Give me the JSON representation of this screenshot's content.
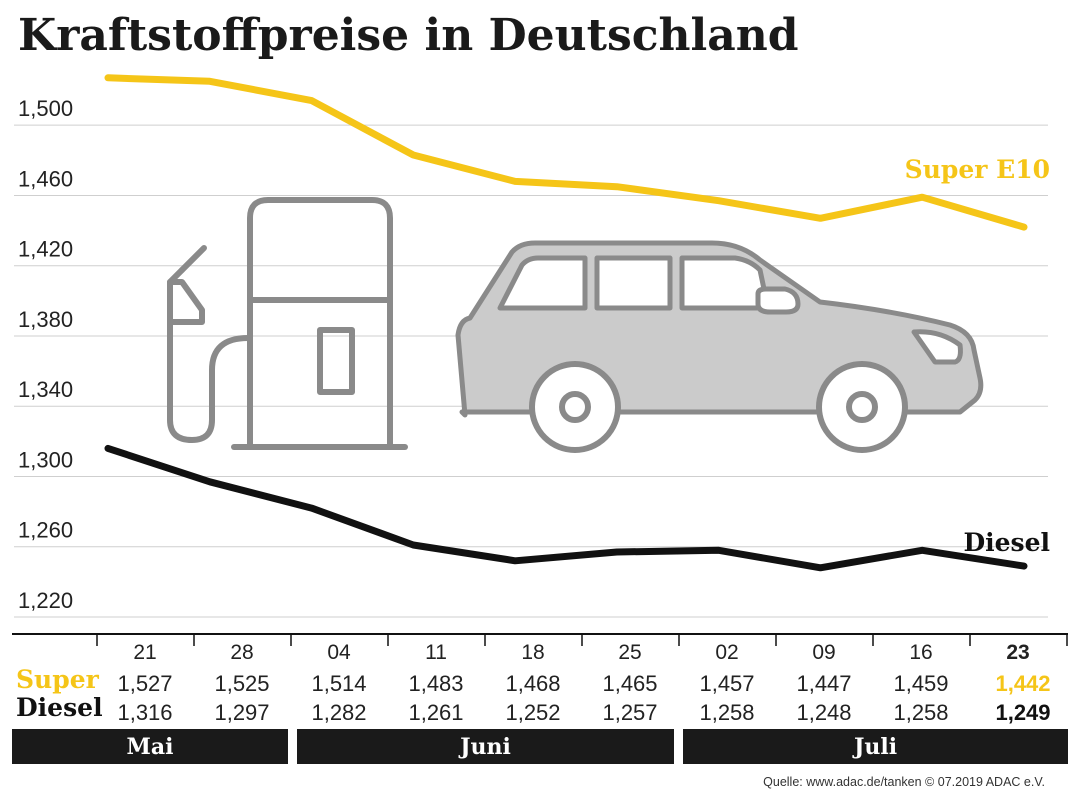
{
  "title": "Kraftstoffpreise in Deutschland",
  "source": "Quelle: www.adac.de/tanken   © 07.2019  ADAC e.V.",
  "colors": {
    "super": "#f5c518",
    "diesel": "#111111",
    "grid": "#cfcfcf",
    "icon": "#8a8a8a",
    "month_bar": "#1a1a1a"
  },
  "icons": [
    "fuel-pump-icon",
    "car-icon"
  ],
  "chart_data": {
    "type": "line",
    "title": "Kraftstoffpreise in Deutschland",
    "xlabel": "",
    "ylabel": "",
    "categories": [
      "21",
      "28",
      "04",
      "11",
      "18",
      "25",
      "02",
      "09",
      "16",
      "23"
    ],
    "ylim": [
      1.22,
      1.528
    ],
    "yticks": [
      1.22,
      1.26,
      1.3,
      1.34,
      1.38,
      1.42,
      1.46,
      1.5
    ],
    "ytick_labels": [
      "1,220",
      "1,260",
      "1,300",
      "1,340",
      "1,380",
      "1,420",
      "1,460",
      "1,500"
    ],
    "grid": true,
    "series": [
      {
        "name": "Super E10",
        "row_label": "Super",
        "color": "#f5c518",
        "values": [
          1.527,
          1.525,
          1.514,
          1.483,
          1.468,
          1.465,
          1.457,
          1.447,
          1.459,
          1.442
        ],
        "value_labels": [
          "1,527",
          "1,525",
          "1,514",
          "1,483",
          "1,468",
          "1,465",
          "1,457",
          "1,447",
          "1,459",
          "1,442"
        ]
      },
      {
        "name": "Diesel",
        "row_label": "Diesel",
        "color": "#111111",
        "values": [
          1.316,
          1.297,
          1.282,
          1.261,
          1.252,
          1.257,
          1.258,
          1.248,
          1.258,
          1.249
        ],
        "value_labels": [
          "1,316",
          "1,297",
          "1,282",
          "1,261",
          "1,252",
          "1,257",
          "1,258",
          "1,248",
          "1,258",
          "1,249"
        ]
      }
    ],
    "months": [
      {
        "label": "Mai",
        "start": 0,
        "end": 1
      },
      {
        "label": "Juni",
        "start": 2,
        "end": 5
      },
      {
        "label": "Juli",
        "start": 6,
        "end": 9
      }
    ]
  }
}
